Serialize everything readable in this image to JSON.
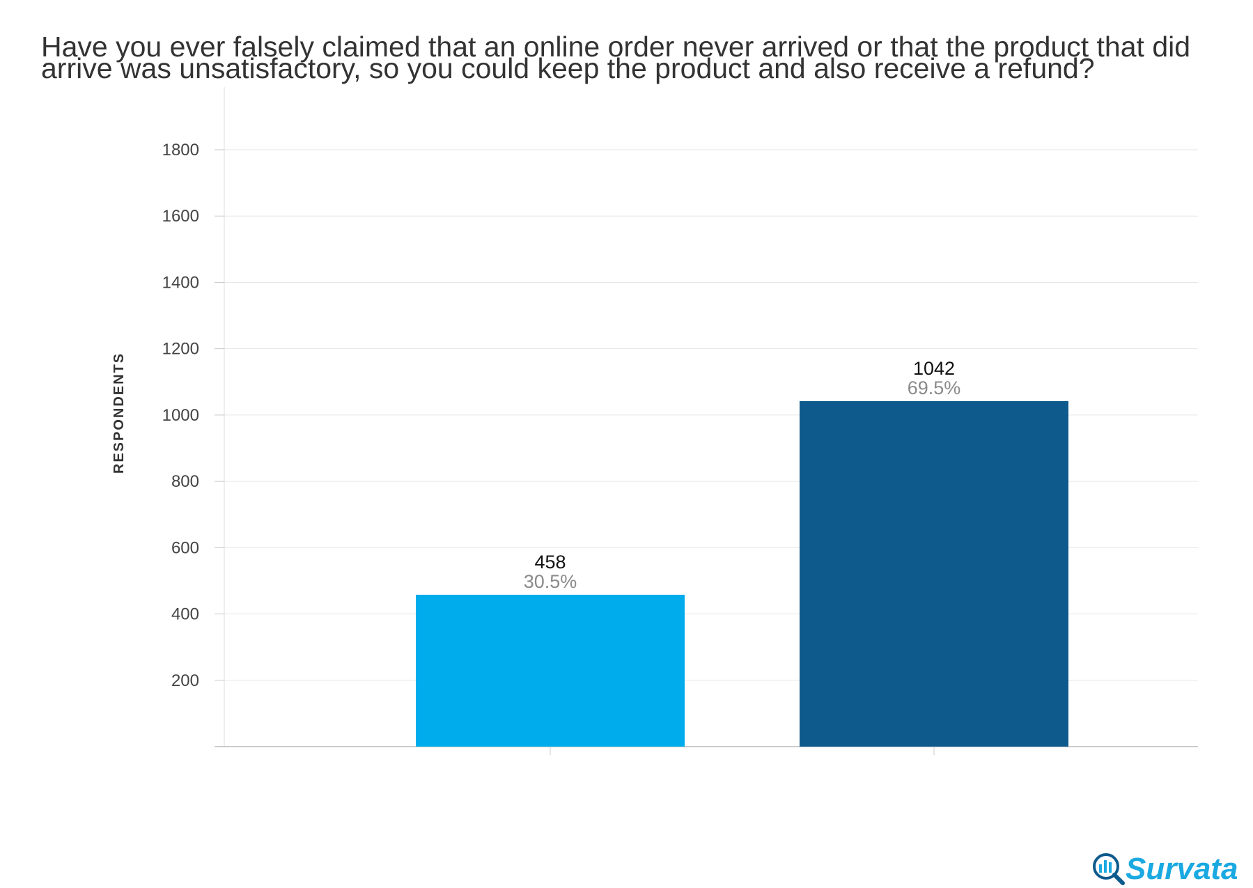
{
  "chart_data": {
    "type": "bar",
    "title": "Have you ever falsely claimed that an online order never arrived or that the product that did arrive was unsatisfactory, so you could keep the product and also receive a refund?",
    "ylabel": "RESPONDENTS",
    "xlabel": "",
    "ylim": [
      0,
      2000
    ],
    "yticks": [
      200,
      400,
      600,
      800,
      1000,
      1200,
      1400,
      1600,
      1800
    ],
    "grid": true,
    "categories": [
      "",
      ""
    ],
    "values": [
      458,
      1042
    ],
    "value_labels": [
      "458",
      "1042"
    ],
    "percent_labels": [
      "30.5%",
      "69.5%"
    ],
    "colors": [
      "#00acec",
      "#0e5a8d"
    ]
  },
  "brand": {
    "logo_text": "Survata",
    "logo_color": "#1aa9e1",
    "icon": "magnifier-chart-icon"
  }
}
